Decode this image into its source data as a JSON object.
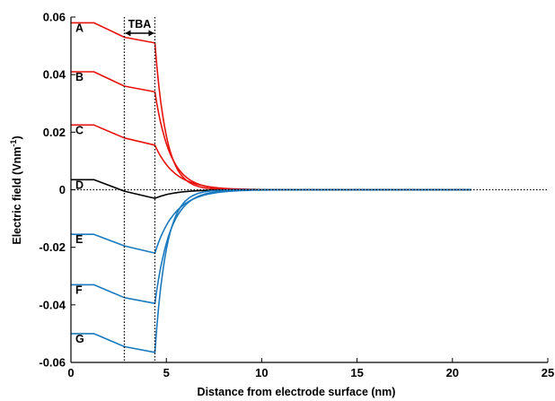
{
  "chart_data": {
    "type": "line",
    "xlabel": "Distance from electrode surface (nm)",
    "ylabel": "Electric field (Vnm",
    "ylabel_sup": "-1",
    "ylabel_end": ")",
    "xlim": [
      0,
      25
    ],
    "ylim": [
      -0.06,
      0.06
    ],
    "x_ticks": [
      0,
      5,
      10,
      15,
      20,
      25
    ],
    "x_tick_labels": [
      "0",
      "5",
      "10",
      "15",
      "20",
      "25"
    ],
    "y_ticks": [
      0.06,
      0.04,
      0.02,
      0,
      -0.02,
      -0.04,
      -0.06
    ],
    "y_tick_labels": [
      "0.06",
      "0.04",
      "0.02",
      "0",
      "-0.02",
      "-0.04",
      "-0.06"
    ],
    "grid": false,
    "zero_line": {
      "style": "dotted",
      "value": 0
    },
    "tba_region": {
      "label": "TBA",
      "x_start": 2.8,
      "x_end": 4.4
    },
    "colors": {
      "red": "#e8120c",
      "black": "#000000",
      "blue": "#1a7abf"
    },
    "series": [
      {
        "label": "A",
        "color": "red",
        "points": [
          [
            0,
            0.058
          ],
          [
            1.2,
            0.058
          ],
          [
            2.8,
            0.053
          ],
          [
            4.4,
            0.051
          ]
        ],
        "decay": "sharp"
      },
      {
        "label": "B",
        "color": "red",
        "points": [
          [
            0,
            0.041
          ],
          [
            1.2,
            0.041
          ],
          [
            2.8,
            0.036
          ],
          [
            4.4,
            0.034
          ]
        ],
        "decay": "medium"
      },
      {
        "label": "C",
        "color": "red",
        "points": [
          [
            0,
            0.0225
          ],
          [
            1.2,
            0.0225
          ],
          [
            2.8,
            0.018
          ],
          [
            4.4,
            0.0155
          ]
        ],
        "decay": "slow"
      },
      {
        "label": "D",
        "color": "black",
        "points": [
          [
            0,
            0.0035
          ],
          [
            1.2,
            0.0035
          ],
          [
            2.8,
            -0.0005
          ],
          [
            4.4,
            -0.003
          ]
        ],
        "decay": "slow"
      },
      {
        "label": "E",
        "color": "blue",
        "points": [
          [
            0,
            -0.0155
          ],
          [
            1.2,
            -0.0155
          ],
          [
            2.8,
            -0.0195
          ],
          [
            4.4,
            -0.022
          ]
        ],
        "decay": "slow"
      },
      {
        "label": "F",
        "color": "blue",
        "points": [
          [
            0,
            -0.033
          ],
          [
            1.2,
            -0.033
          ],
          [
            2.8,
            -0.0375
          ],
          [
            4.4,
            -0.0395
          ]
        ],
        "decay": "medium"
      },
      {
        "label": "G",
        "color": "blue",
        "points": [
          [
            0,
            -0.05
          ],
          [
            1.2,
            -0.05
          ],
          [
            2.8,
            -0.0545
          ],
          [
            4.4,
            -0.0565
          ]
        ],
        "decay": "sharp"
      }
    ]
  }
}
